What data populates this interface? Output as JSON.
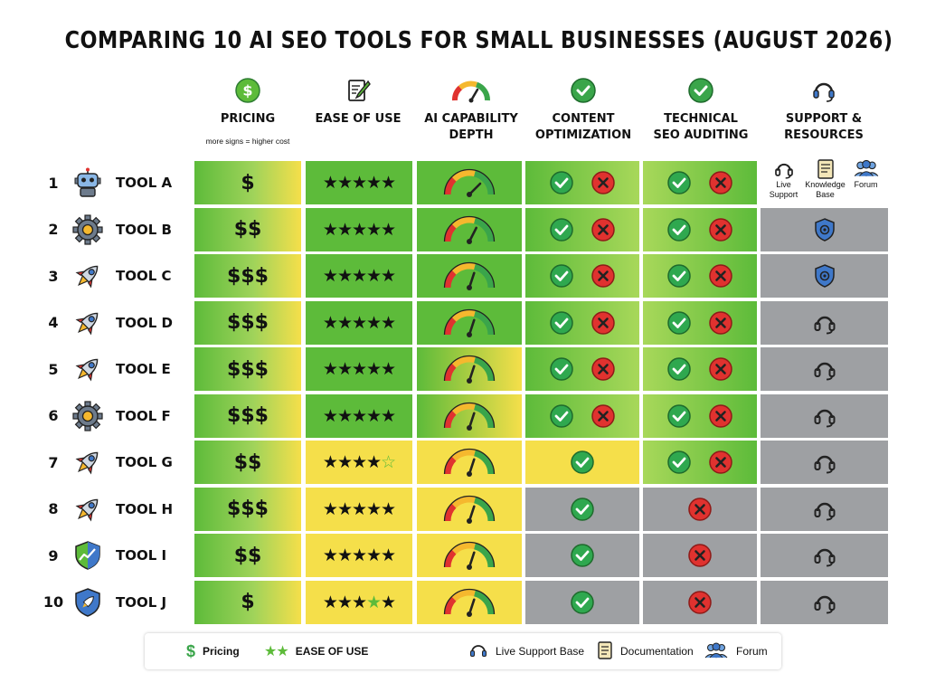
{
  "title": "COMPARING 10 AI SEO TOOLS FOR SMALL BUSINESSES (AUGUST 2026)",
  "headers": {
    "pricing": "PRICING",
    "pricing_note": "more signs = higher cost",
    "ease": "EASE OF USE",
    "ai_line1": "AI CAPABILITY",
    "ai_line2": "DEPTH",
    "content_line1": "CONTENT",
    "content_line2": "OPTIMIZATION",
    "tech_line1": "TECHNICAL",
    "tech_line2": "SEO AUDITING",
    "support_line1": "SUPPORT &",
    "support_line2": "RESOURCES",
    "support_live_1": "Live",
    "support_live_2": "Support",
    "support_kb_1": "Knowledge",
    "support_kb_2": "Base",
    "support_forum": "Forum"
  },
  "colors": {
    "green": "#5dbb3a",
    "yellow": "#f5df4a",
    "gray": "#9ea0a3",
    "check": "#2fa84f",
    "cross": "#e0322f",
    "shield": "#3f78c9"
  },
  "tools": [
    {
      "rank": "1",
      "name": "TOOL A",
      "icon": "robot-icon",
      "price": "$",
      "stars_filled": 5,
      "stars_outline": 0,
      "gauge_level": 0.75,
      "content": "both",
      "tech": "both",
      "support": "all-resources"
    },
    {
      "rank": "2",
      "name": "TOOL B",
      "icon": "gear-icon",
      "price": "$$",
      "stars_filled": 5,
      "stars_outline": 0,
      "gauge_level": 0.65,
      "content": "both",
      "tech": "both",
      "support": "shield"
    },
    {
      "rank": "3",
      "name": "TOOL C",
      "icon": "rocket-icon",
      "price": "$$$",
      "stars_filled": 5,
      "stars_outline": 0,
      "gauge_level": 0.6,
      "content": "both",
      "tech": "both",
      "support": "shield"
    },
    {
      "rank": "4",
      "name": "TOOL D",
      "icon": "rocket-icon",
      "price": "$$$",
      "stars_filled": 5,
      "stars_outline": 0,
      "gauge_level": 0.6,
      "content": "both",
      "tech": "both",
      "support": "headset"
    },
    {
      "rank": "5",
      "name": "TOOL E",
      "icon": "rocket-icon",
      "price": "$$$",
      "stars_filled": 5,
      "stars_outline": 0,
      "gauge_level": 0.6,
      "content": "both",
      "tech": "both",
      "support": "headset"
    },
    {
      "rank": "6",
      "name": "TOOL F",
      "icon": "gear-icon",
      "price": "$$$",
      "stars_filled": 5,
      "stars_outline": 0,
      "gauge_level": 0.6,
      "content": "both",
      "tech": "both",
      "support": "headset"
    },
    {
      "rank": "7",
      "name": "TOOL G",
      "icon": "rocket-icon",
      "price": "$$",
      "stars_filled": 4,
      "stars_outline": 1,
      "gauge_level": 0.6,
      "content": "check",
      "tech": "both",
      "support": "headset"
    },
    {
      "rank": "8",
      "name": "TOOL H",
      "icon": "rocket-icon",
      "price": "$$$",
      "stars_filled": 5,
      "stars_outline": 0,
      "gauge_level": 0.6,
      "content": "check",
      "tech": "cross",
      "support": "headset"
    },
    {
      "rank": "9",
      "name": "TOOL I",
      "icon": "shield-chart-icon",
      "price": "$$",
      "stars_filled": 5,
      "stars_outline": 0,
      "gauge_level": 0.6,
      "content": "check",
      "tech": "cross",
      "support": "headset"
    },
    {
      "rank": "10",
      "name": "TOOL J",
      "icon": "shield-rocket-icon",
      "price": "$",
      "stars_filled": 3,
      "stars_outline": 1,
      "stars_after": 1,
      "gauge_level": 0.6,
      "content": "check",
      "tech": "cross",
      "support": "headset"
    }
  ],
  "legend": {
    "pricing_symbol": "$",
    "pricing_label": "Pricing",
    "ease_label": "EASE OF USE",
    "live_label": "Live Support Base",
    "doc_label": "Documentation",
    "forum_label": "Forum"
  }
}
